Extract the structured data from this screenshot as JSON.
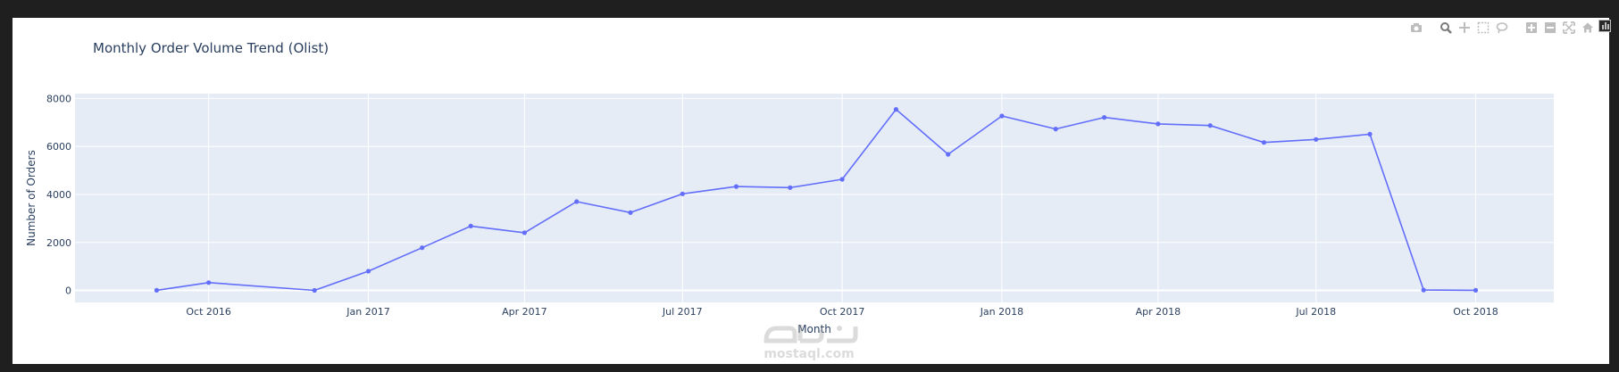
{
  "chart_data": {
    "type": "line",
    "title": "Monthly Order Volume Trend (Olist)",
    "xlabel": "Month",
    "ylabel": "Number of Orders",
    "x": [
      "2016-09",
      "2016-10",
      "2016-12",
      "2017-01",
      "2017-02",
      "2017-03",
      "2017-04",
      "2017-05",
      "2017-06",
      "2017-07",
      "2017-08",
      "2017-09",
      "2017-10",
      "2017-11",
      "2017-12",
      "2018-01",
      "2018-02",
      "2018-03",
      "2018-04",
      "2018-05",
      "2018-06",
      "2018-07",
      "2018-08",
      "2018-09",
      "2018-10"
    ],
    "series": [
      {
        "values": [
          4,
          324,
          1,
          800,
          1780,
          2682,
          2404,
          3700,
          3245,
          4026,
          4331,
          4285,
          4631,
          7544,
          5673,
          7269,
          6728,
          7211,
          6939,
          6873,
          6167,
          6292,
          6512,
          16,
          4
        ]
      }
    ],
    "x_ticks": [
      "Oct 2016",
      "Jan 2017",
      "Apr 2017",
      "Jul 2017",
      "Oct 2017",
      "Jan 2018",
      "Apr 2018",
      "Jul 2018",
      "Oct 2018"
    ],
    "x_tick_dates": [
      "2016-10-01",
      "2017-01-01",
      "2017-04-01",
      "2017-07-01",
      "2017-10-01",
      "2018-01-01",
      "2018-04-01",
      "2018-07-01",
      "2018-10-01"
    ],
    "y_ticks": [
      "0",
      "2000",
      "4000",
      "6000",
      "8000"
    ],
    "ylim": [
      -500,
      8200
    ],
    "xlim": [
      "2016-07-16",
      "2018-11-15"
    ],
    "grid": true,
    "colors": {
      "line": "#636efa",
      "plot_bg": "#e5ecf6",
      "grid": "#ffffff",
      "text": "#2a3f5f"
    }
  },
  "modebar": {
    "icons": [
      "camera-icon",
      "zoom-icon",
      "pan-icon",
      "box-select-icon",
      "lasso-icon",
      "zoom-in-icon",
      "zoom-out-icon",
      "autoscale-icon",
      "home-icon"
    ]
  },
  "watermark": {
    "text": "mostaql.com"
  }
}
